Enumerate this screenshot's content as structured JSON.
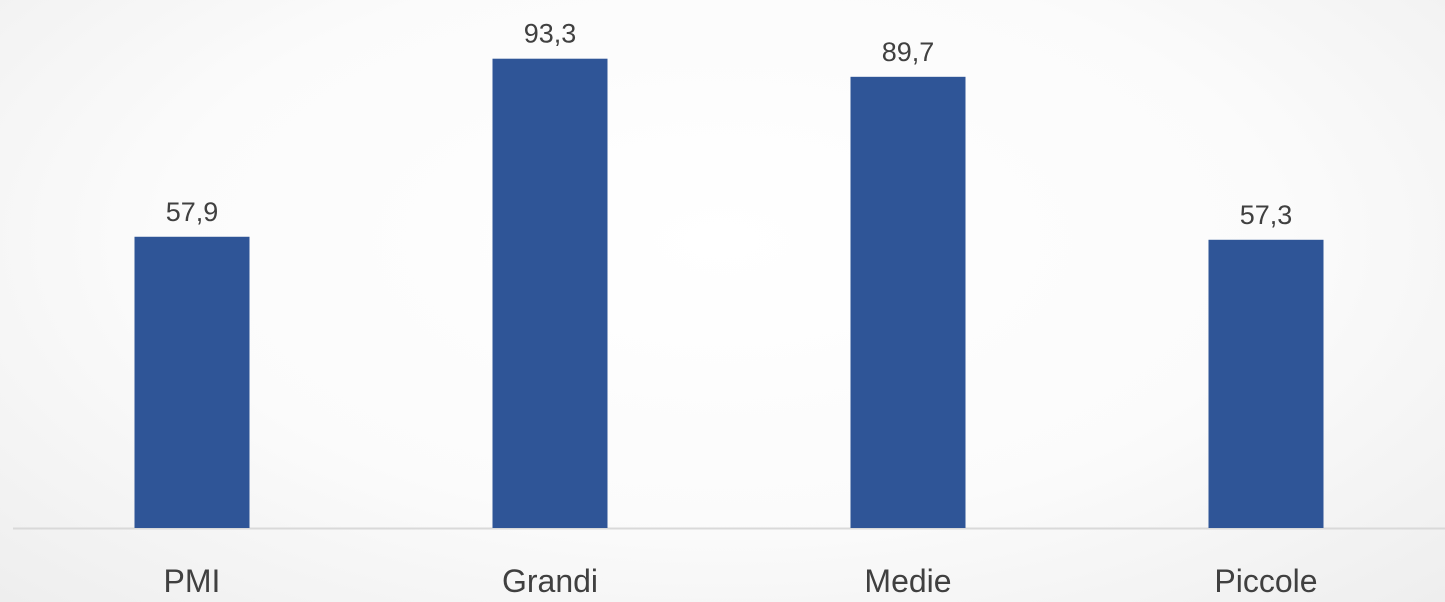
{
  "chart_data": {
    "type": "bar",
    "categories": [
      "PMI",
      "Grandi",
      "Medie",
      "Piccole"
    ],
    "values": [
      57.9,
      93.3,
      89.7,
      57.3
    ],
    "value_labels": [
      "57,9",
      "93,3",
      "89,7",
      "57,3"
    ],
    "title": "",
    "xlabel": "",
    "ylabel": "",
    "ylim": [
      0,
      100
    ],
    "grid": false,
    "legend": "none",
    "colors": {
      "bar": "#2F5597",
      "axis": "#D9D9D9",
      "text": "#404040"
    }
  }
}
